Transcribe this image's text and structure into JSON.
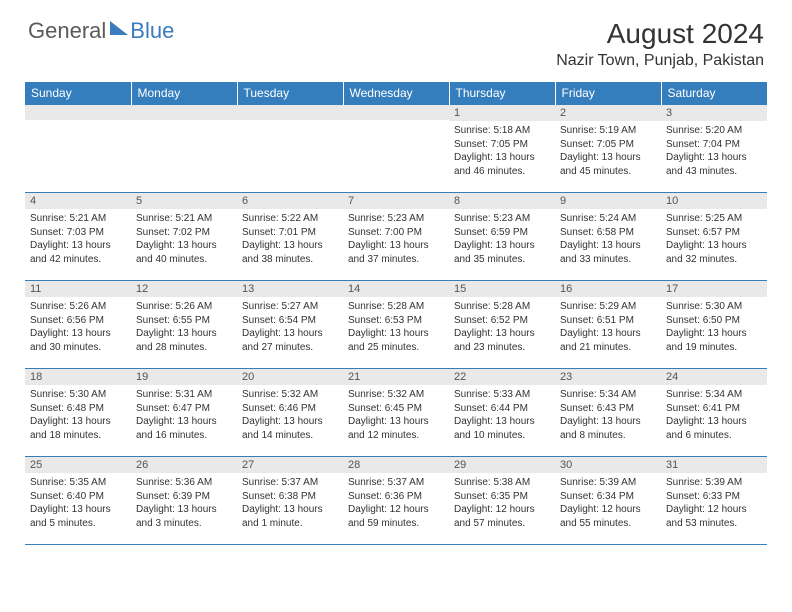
{
  "logo": {
    "part1": "General",
    "part2": "Blue"
  },
  "title": "August 2024",
  "location": "Nazir Town, Punjab, Pakistan",
  "colors": {
    "header_bg": "#357ebd",
    "header_text": "#ffffff",
    "daynum_bg": "#e9e9e9",
    "border": "#357ebd",
    "logo_gray": "#5a5a5a",
    "logo_blue": "#3b7bbf"
  },
  "day_headers": [
    "Sunday",
    "Monday",
    "Tuesday",
    "Wednesday",
    "Thursday",
    "Friday",
    "Saturday"
  ],
  "weeks": [
    [
      {
        "n": "",
        "sr": "",
        "ss": "",
        "dl": ""
      },
      {
        "n": "",
        "sr": "",
        "ss": "",
        "dl": ""
      },
      {
        "n": "",
        "sr": "",
        "ss": "",
        "dl": ""
      },
      {
        "n": "",
        "sr": "",
        "ss": "",
        "dl": ""
      },
      {
        "n": "1",
        "sr": "Sunrise: 5:18 AM",
        "ss": "Sunset: 7:05 PM",
        "dl": "Daylight: 13 hours and 46 minutes."
      },
      {
        "n": "2",
        "sr": "Sunrise: 5:19 AM",
        "ss": "Sunset: 7:05 PM",
        "dl": "Daylight: 13 hours and 45 minutes."
      },
      {
        "n": "3",
        "sr": "Sunrise: 5:20 AM",
        "ss": "Sunset: 7:04 PM",
        "dl": "Daylight: 13 hours and 43 minutes."
      }
    ],
    [
      {
        "n": "4",
        "sr": "Sunrise: 5:21 AM",
        "ss": "Sunset: 7:03 PM",
        "dl": "Daylight: 13 hours and 42 minutes."
      },
      {
        "n": "5",
        "sr": "Sunrise: 5:21 AM",
        "ss": "Sunset: 7:02 PM",
        "dl": "Daylight: 13 hours and 40 minutes."
      },
      {
        "n": "6",
        "sr": "Sunrise: 5:22 AM",
        "ss": "Sunset: 7:01 PM",
        "dl": "Daylight: 13 hours and 38 minutes."
      },
      {
        "n": "7",
        "sr": "Sunrise: 5:23 AM",
        "ss": "Sunset: 7:00 PM",
        "dl": "Daylight: 13 hours and 37 minutes."
      },
      {
        "n": "8",
        "sr": "Sunrise: 5:23 AM",
        "ss": "Sunset: 6:59 PM",
        "dl": "Daylight: 13 hours and 35 minutes."
      },
      {
        "n": "9",
        "sr": "Sunrise: 5:24 AM",
        "ss": "Sunset: 6:58 PM",
        "dl": "Daylight: 13 hours and 33 minutes."
      },
      {
        "n": "10",
        "sr": "Sunrise: 5:25 AM",
        "ss": "Sunset: 6:57 PM",
        "dl": "Daylight: 13 hours and 32 minutes."
      }
    ],
    [
      {
        "n": "11",
        "sr": "Sunrise: 5:26 AM",
        "ss": "Sunset: 6:56 PM",
        "dl": "Daylight: 13 hours and 30 minutes."
      },
      {
        "n": "12",
        "sr": "Sunrise: 5:26 AM",
        "ss": "Sunset: 6:55 PM",
        "dl": "Daylight: 13 hours and 28 minutes."
      },
      {
        "n": "13",
        "sr": "Sunrise: 5:27 AM",
        "ss": "Sunset: 6:54 PM",
        "dl": "Daylight: 13 hours and 27 minutes."
      },
      {
        "n": "14",
        "sr": "Sunrise: 5:28 AM",
        "ss": "Sunset: 6:53 PM",
        "dl": "Daylight: 13 hours and 25 minutes."
      },
      {
        "n": "15",
        "sr": "Sunrise: 5:28 AM",
        "ss": "Sunset: 6:52 PM",
        "dl": "Daylight: 13 hours and 23 minutes."
      },
      {
        "n": "16",
        "sr": "Sunrise: 5:29 AM",
        "ss": "Sunset: 6:51 PM",
        "dl": "Daylight: 13 hours and 21 minutes."
      },
      {
        "n": "17",
        "sr": "Sunrise: 5:30 AM",
        "ss": "Sunset: 6:50 PM",
        "dl": "Daylight: 13 hours and 19 minutes."
      }
    ],
    [
      {
        "n": "18",
        "sr": "Sunrise: 5:30 AM",
        "ss": "Sunset: 6:48 PM",
        "dl": "Daylight: 13 hours and 18 minutes."
      },
      {
        "n": "19",
        "sr": "Sunrise: 5:31 AM",
        "ss": "Sunset: 6:47 PM",
        "dl": "Daylight: 13 hours and 16 minutes."
      },
      {
        "n": "20",
        "sr": "Sunrise: 5:32 AM",
        "ss": "Sunset: 6:46 PM",
        "dl": "Daylight: 13 hours and 14 minutes."
      },
      {
        "n": "21",
        "sr": "Sunrise: 5:32 AM",
        "ss": "Sunset: 6:45 PM",
        "dl": "Daylight: 13 hours and 12 minutes."
      },
      {
        "n": "22",
        "sr": "Sunrise: 5:33 AM",
        "ss": "Sunset: 6:44 PM",
        "dl": "Daylight: 13 hours and 10 minutes."
      },
      {
        "n": "23",
        "sr": "Sunrise: 5:34 AM",
        "ss": "Sunset: 6:43 PM",
        "dl": "Daylight: 13 hours and 8 minutes."
      },
      {
        "n": "24",
        "sr": "Sunrise: 5:34 AM",
        "ss": "Sunset: 6:41 PM",
        "dl": "Daylight: 13 hours and 6 minutes."
      }
    ],
    [
      {
        "n": "25",
        "sr": "Sunrise: 5:35 AM",
        "ss": "Sunset: 6:40 PM",
        "dl": "Daylight: 13 hours and 5 minutes."
      },
      {
        "n": "26",
        "sr": "Sunrise: 5:36 AM",
        "ss": "Sunset: 6:39 PM",
        "dl": "Daylight: 13 hours and 3 minutes."
      },
      {
        "n": "27",
        "sr": "Sunrise: 5:37 AM",
        "ss": "Sunset: 6:38 PM",
        "dl": "Daylight: 13 hours and 1 minute."
      },
      {
        "n": "28",
        "sr": "Sunrise: 5:37 AM",
        "ss": "Sunset: 6:36 PM",
        "dl": "Daylight: 12 hours and 59 minutes."
      },
      {
        "n": "29",
        "sr": "Sunrise: 5:38 AM",
        "ss": "Sunset: 6:35 PM",
        "dl": "Daylight: 12 hours and 57 minutes."
      },
      {
        "n": "30",
        "sr": "Sunrise: 5:39 AM",
        "ss": "Sunset: 6:34 PM",
        "dl": "Daylight: 12 hours and 55 minutes."
      },
      {
        "n": "31",
        "sr": "Sunrise: 5:39 AM",
        "ss": "Sunset: 6:33 PM",
        "dl": "Daylight: 12 hours and 53 minutes."
      }
    ]
  ]
}
